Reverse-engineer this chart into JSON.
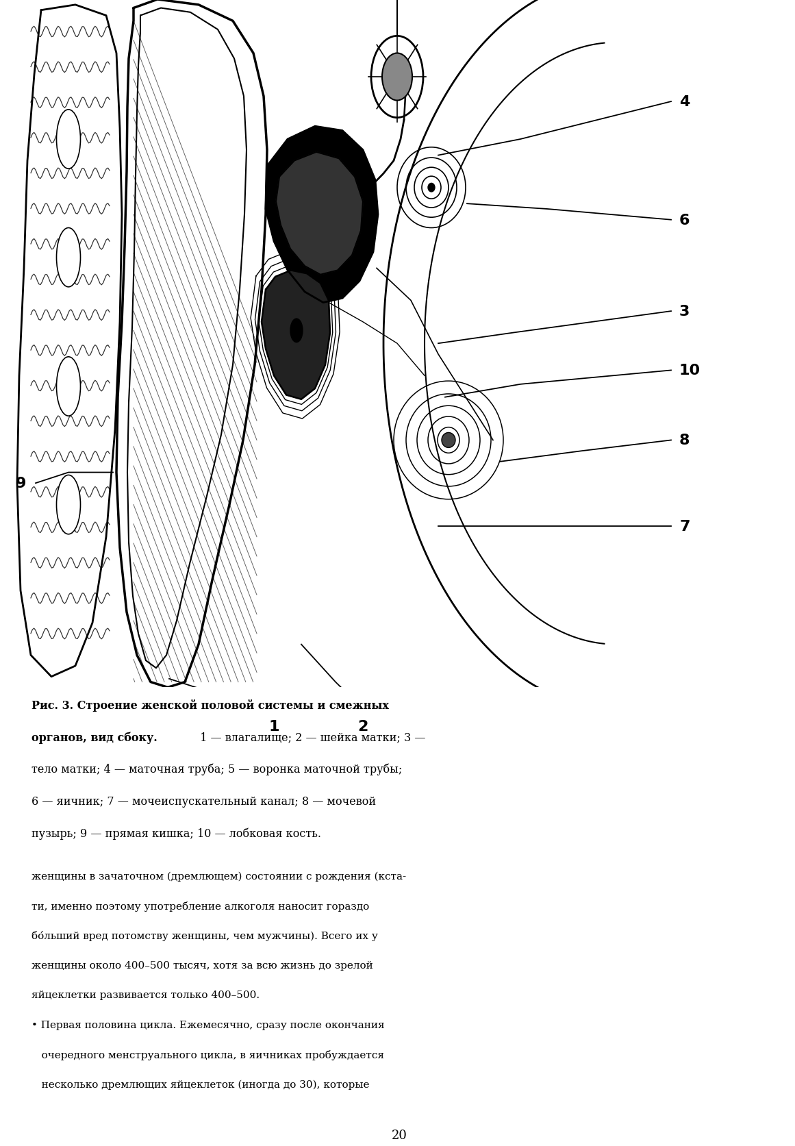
{
  "bg_color": "#ffffff",
  "fig_width": 11.61,
  "fig_height": 16.74,
  "dpi": 100,
  "caption_line1_bold": "Рис. 3. Строение женской половой системы и смежных",
  "caption_line2_bold": "органов, вид сбоку.",
  "caption_line2_normal": " 1 — влагалище; 2 — шейка матки; 3 —",
  "caption_line3": "тело матки; 4 — маточная труба; 5 — воронка маточной трубы;",
  "caption_line4": "6 — яичник; 7 — мочеиспускательный канал; 8 — мочевой",
  "caption_line5": "пузырь; 9 — прямая кишка; 10 — лобковая кость.",
  "body_line1": "женщины в зачаточном (дремлющем) состоянии с рождения (кста-",
  "body_line2": "ти, именно поэтому употребление алкоголя наносит гораздо",
  "body_line3": "бо́льший вред потомству женщины, чем мужчины). Всего их у",
  "body_line4": "женщины около 400–500 тысяч, хотя за всю жизнь до зрелой",
  "body_line5": "яйцеклетки развивается только 400–500.",
  "bullet_line1": "• Первая половина цикла. Ежемесячно, сразу после окончания",
  "bullet_line2": "   очередного менструального цикла, в яичниках пробуждается",
  "bullet_line3": "   несколько дремлющих яйцеклеток (иногда до 30), которые",
  "page_number": "20"
}
